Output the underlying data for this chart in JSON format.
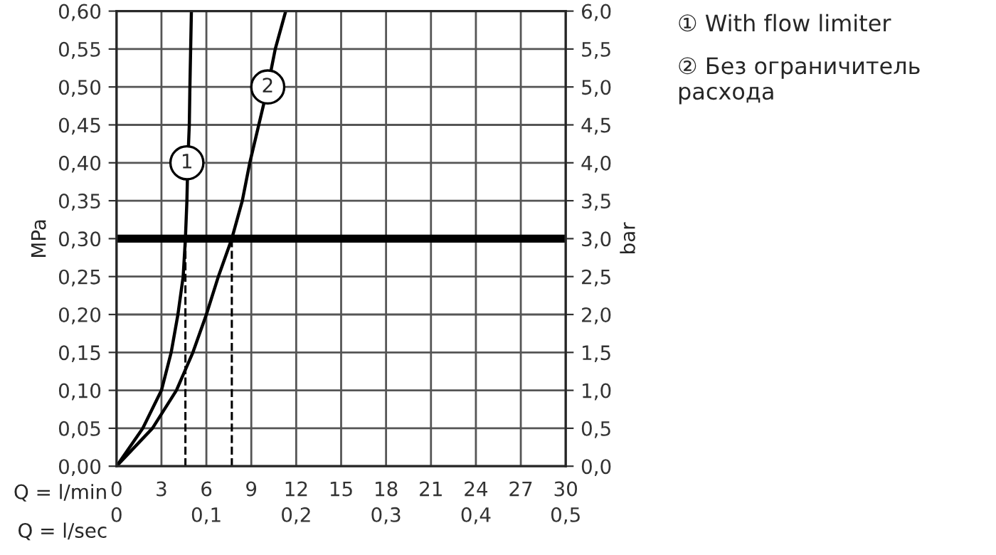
{
  "chart_data": {
    "type": "line",
    "xlabel": "Q = l/min",
    "x2label": "Q = l/sec",
    "ylabel": "MPa",
    "y2label": "bar",
    "xlim": [
      0,
      30
    ],
    "xticks": [
      0,
      3,
      6,
      9,
      12,
      15,
      18,
      21,
      24,
      27,
      30
    ],
    "x2lim": [
      0,
      0.5
    ],
    "x2ticks": [
      0,
      {
        "value": 0.1,
        "label": "0,1"
      },
      {
        "value": 0.2,
        "label": "0,2"
      },
      {
        "value": 0.3,
        "label": "0,3"
      },
      {
        "value": 0.4,
        "label": "0,4"
      },
      {
        "value": 0.5,
        "label": "0,5"
      }
    ],
    "ylim": [
      0,
      0.6
    ],
    "yticks": [
      {
        "value": 0,
        "label": "0,00"
      },
      {
        "value": 0.05,
        "label": "0,05"
      },
      {
        "value": 0.1,
        "label": "0,10"
      },
      {
        "value": 0.15,
        "label": "0,15"
      },
      {
        "value": 0.2,
        "label": "0,20"
      },
      {
        "value": 0.25,
        "label": "0,25"
      },
      {
        "value": 0.3,
        "label": "0,30"
      },
      {
        "value": 0.35,
        "label": "0,35"
      },
      {
        "value": 0.4,
        "label": "0,40"
      },
      {
        "value": 0.45,
        "label": "0,45"
      },
      {
        "value": 0.5,
        "label": "0,50"
      },
      {
        "value": 0.55,
        "label": "0,55"
      },
      {
        "value": 0.6,
        "label": "0,60"
      }
    ],
    "y2lim": [
      0,
      6
    ],
    "y2ticks": [
      {
        "value": 0,
        "label": "0,0"
      },
      {
        "value": 0.5,
        "label": "0,5"
      },
      {
        "value": 1,
        "label": "1,0"
      },
      {
        "value": 1.5,
        "label": "1,5"
      },
      {
        "value": 2,
        "label": "2,0"
      },
      {
        "value": 2.5,
        "label": "2,5"
      },
      {
        "value": 3,
        "label": "3,0"
      },
      {
        "value": 3.5,
        "label": "3,5"
      },
      {
        "value": 4,
        "label": "4,0"
      },
      {
        "value": 4.5,
        "label": "4,5"
      },
      {
        "value": 5,
        "label": "5,0"
      },
      {
        "value": 5.5,
        "label": "5,5"
      },
      {
        "value": 6,
        "label": "6,0"
      }
    ],
    "grid": true,
    "line_style": "solid",
    "series": [
      {
        "color": "#000000",
        "x": [
          0,
          1.75,
          3.0,
          3.65,
          4.1,
          4.45,
          4.6,
          4.7,
          4.76,
          4.86,
          4.9,
          5.0
        ],
        "values": [
          0,
          0.05,
          0.1,
          0.15,
          0.2,
          0.25,
          0.3,
          0.35,
          0.4,
          0.45,
          0.5,
          0.6
        ]
      },
      {
        "color": "#000000",
        "x": [
          0,
          2.4,
          4.0,
          5.1,
          6.0,
          6.8,
          7.7,
          8.4,
          8.9,
          9.5,
          10.1,
          10.6,
          11.3
        ],
        "values": [
          0,
          0.05,
          0.1,
          0.15,
          0.2,
          0.25,
          0.3,
          0.35,
          0.4,
          0.45,
          0.5,
          0.55,
          0.6
        ]
      },
      {
        "color": "#000000",
        "line_style": "dashed",
        "x": [
          4.6,
          4.6
        ],
        "values": [
          0,
          0.3
        ]
      },
      {
        "color": "#000000",
        "line_style": "dashed",
        "x": [
          7.7,
          7.7
        ],
        "values": [
          0,
          0.3
        ]
      }
    ],
    "ref_lines": [
      {
        "axis": "y",
        "value": 0.3,
        "color": "#000000"
      }
    ],
    "annotations": [
      {
        "text": "1",
        "x": 4.7,
        "y": 0.4
      },
      {
        "text": "2",
        "x": 10.1,
        "y": 0.5
      },
      "① With flow limiter",
      "② Без ограничитель расхода"
    ]
  }
}
